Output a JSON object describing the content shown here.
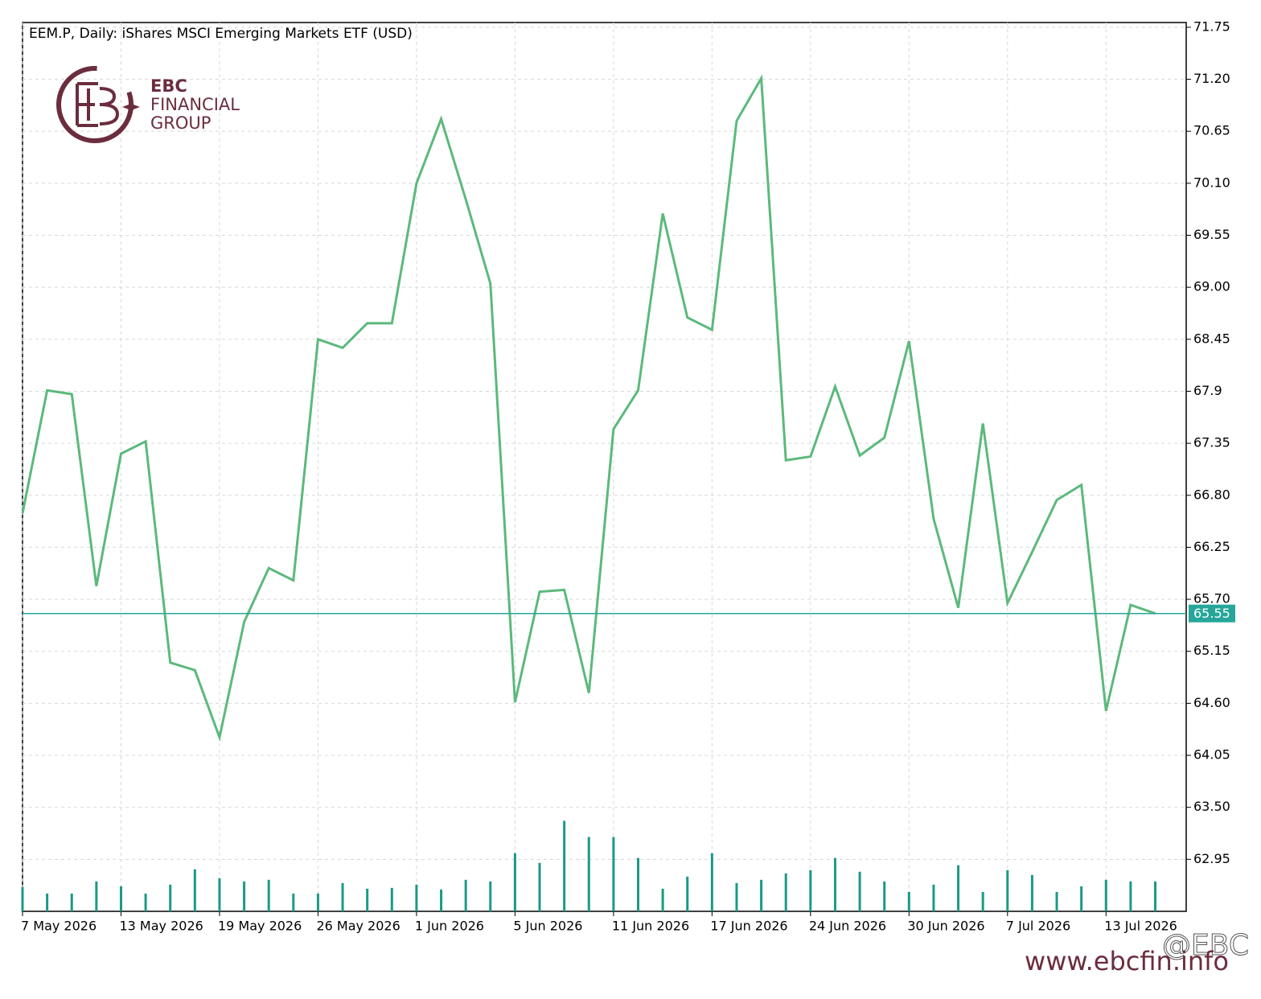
{
  "chart_data": {
    "type": "line",
    "title": "EEM.P, Daily:  iShares MSCI Emerging Markets ETF (USD)",
    "brand": {
      "name": "EBC",
      "line1": "FINANCIAL",
      "line2": "GROUP"
    },
    "watermark": {
      "handle": "@EBC",
      "url": "www.ebcfin.info"
    },
    "categories": [
      "7 May 2026",
      null,
      null,
      null,
      "13 May 2026",
      null,
      null,
      null,
      "19 May 2026",
      null,
      null,
      null,
      "26 May 2026",
      null,
      null,
      null,
      "1 Jun 2026",
      null,
      null,
      null,
      "5 Jun 2026",
      null,
      null,
      null,
      "11 Jun 2026",
      null,
      null,
      null,
      "17 Jun 2026",
      null,
      null,
      null,
      "24 Jun 2026",
      null,
      null,
      null,
      "30 Jun 2026",
      null,
      null,
      null,
      "7 Jul 2026",
      null,
      null,
      null,
      "13 Jul 2026",
      null,
      null
    ],
    "series": [
      {
        "name": "EEM.P",
        "color": "#5bb97b",
        "values": [
          66.61,
          67.91,
          67.87,
          65.84,
          67.24,
          67.37,
          65.03,
          64.95,
          64.24,
          65.46,
          66.03,
          65.9,
          68.45,
          68.36,
          68.62,
          68.62,
          70.1,
          70.78,
          69.93,
          69.04,
          64.61,
          65.78,
          65.8,
          64.71,
          67.5,
          67.91,
          69.78,
          68.68,
          68.55,
          70.76,
          71.21,
          67.17,
          67.21,
          67.95,
          67.22,
          67.41,
          68.43,
          66.55,
          65.61,
          67.56,
          65.66,
          66.2,
          66.75,
          66.91,
          64.52,
          65.64,
          65.55
        ]
      },
      {
        "name": "Volume",
        "type": "bar",
        "axis": "y2",
        "color": "#1a9a86",
        "values": [
          30,
          22,
          22,
          37,
          31,
          22,
          33,
          52,
          41,
          37,
          39,
          22,
          22,
          35,
          28,
          29,
          33,
          27,
          39,
          37,
          72,
          60,
          112,
          92,
          92,
          66,
          28,
          43,
          72,
          35,
          39,
          47,
          51,
          66,
          49,
          37,
          24,
          33,
          57,
          24,
          51,
          45,
          24,
          31,
          39,
          37,
          37
        ]
      }
    ],
    "current_price": 65.55,
    "current_color": "#26a69a",
    "ylim": [
      62.4,
      71.8
    ],
    "yticks": [
      71.75,
      {
        "value": 71.2,
        "label": "71.20"
      },
      70.65,
      {
        "value": 70.1,
        "label": "70.10"
      },
      69.55,
      {
        "value": 69.0,
        "label": "69.00"
      },
      68.45,
      67.9,
      67.35,
      {
        "value": 66.8,
        "label": "66.80"
      },
      66.25,
      {
        "value": 65.7,
        "label": "65.70"
      },
      65.15,
      {
        "value": 64.6,
        "label": "64.60"
      },
      64.05,
      {
        "value": 63.5,
        "label": "63.50"
      },
      62.95
    ],
    "y2lim": [
      0,
      1100
    ],
    "grid": true
  }
}
